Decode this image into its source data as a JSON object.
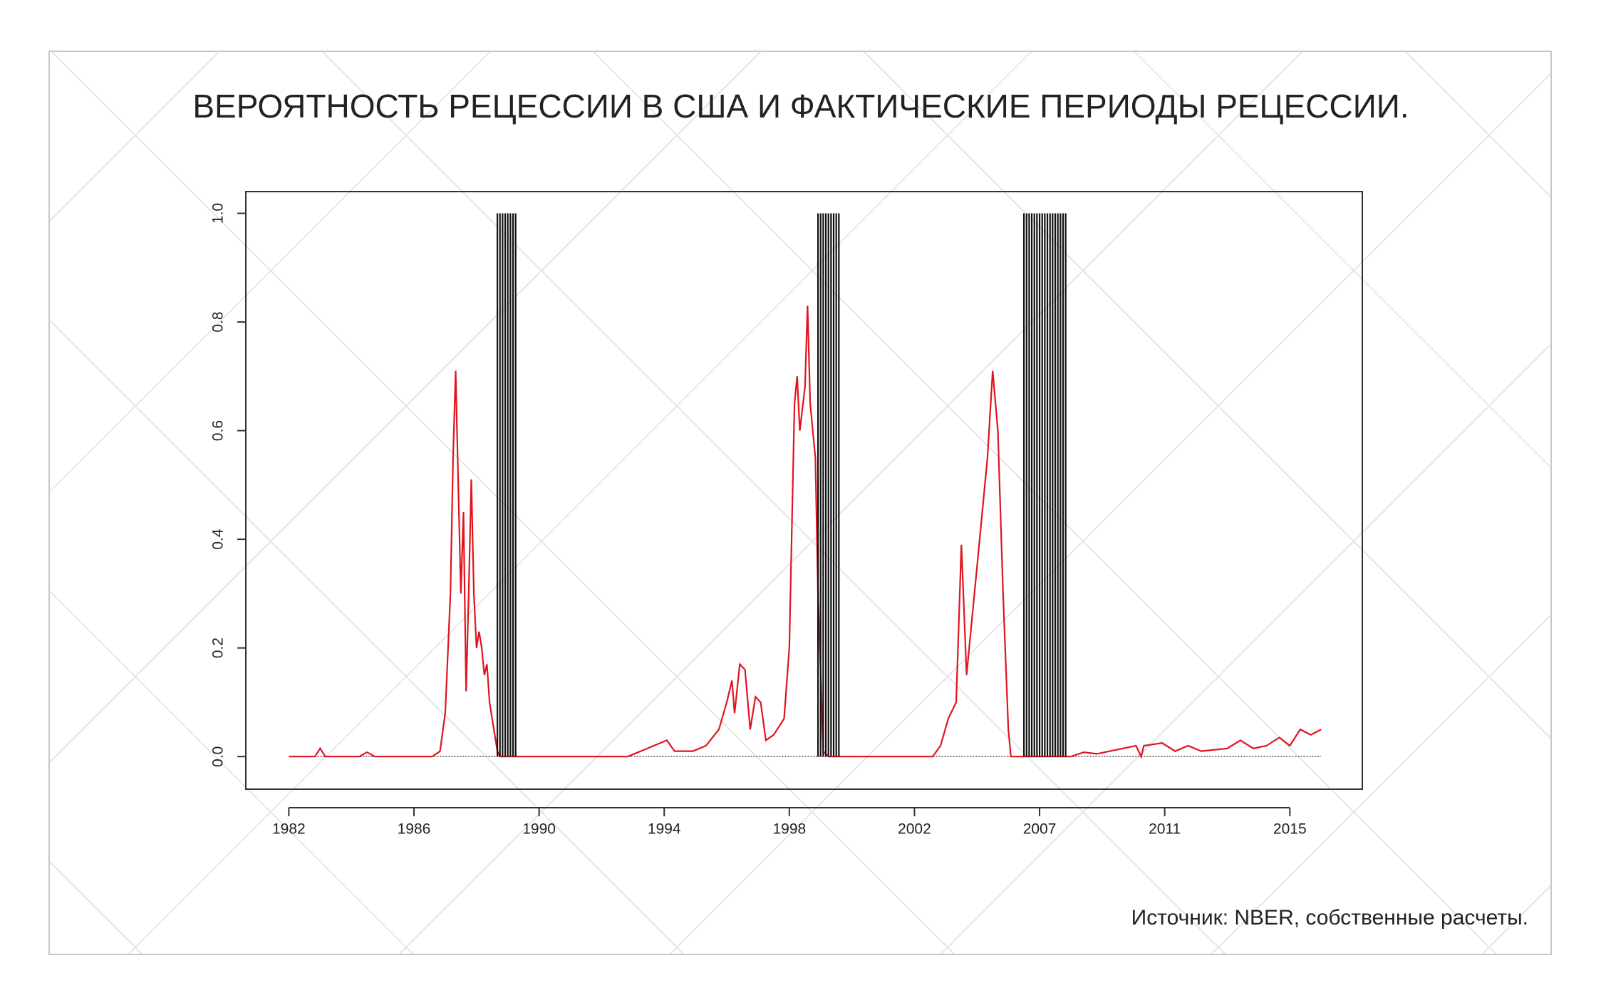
{
  "chart_data": {
    "type": "line",
    "title": "ВЕРОЯТНОСТЬ РЕЦЕССИИ В США И ФАКТИЧЕСКИЕ ПЕРИОДЫ РЕЦЕССИИ.",
    "source": "Источник: NBER, собственные расчеты.",
    "xlim": [
      -16.5,
      411.8
    ],
    "xticks": [
      {
        "value": 0,
        "label": "1982"
      },
      {
        "value": 48,
        "label": "1986"
      },
      {
        "value": 96,
        "label": "1990"
      },
      {
        "value": 144,
        "label": "1994"
      },
      {
        "value": 192,
        "label": "1998"
      },
      {
        "value": 240,
        "label": "2002"
      },
      {
        "value": 288,
        "label": "2007"
      },
      {
        "value": 336,
        "label": "2011"
      },
      {
        "value": 384,
        "label": "2015"
      }
    ],
    "ylim": [
      -0.06,
      1.04
    ],
    "yticks": [
      {
        "value": 0,
        "label": "0.0"
      },
      {
        "value": 0.2,
        "label": "0.2"
      },
      {
        "value": 0.4,
        "label": "0.4"
      },
      {
        "value": 0.6,
        "label": "0.6"
      },
      {
        "value": 0.8,
        "label": "0.8"
      },
      {
        "value": 1,
        "label": "1.0"
      }
    ],
    "series": [
      {
        "color": "#e0141e",
        "x": [
          0,
          10,
          12,
          14,
          27,
          30,
          33,
          55,
          58,
          60,
          62,
          63,
          64,
          65,
          66,
          67,
          68,
          69,
          70,
          71,
          72,
          73,
          74,
          75,
          76,
          77,
          78,
          79,
          80,
          81,
          130,
          135,
          140,
          145,
          148,
          155,
          160,
          165,
          168,
          170,
          171,
          173,
          175,
          177,
          179,
          181,
          183,
          186,
          190,
          192,
          194,
          195,
          196,
          198,
          199,
          200,
          202,
          203,
          205,
          207,
          247,
          250,
          253,
          256,
          258,
          260,
          262,
          264,
          266,
          268,
          270,
          272,
          274,
          276,
          277,
          300,
          305,
          310,
          315,
          325,
          327,
          328,
          335,
          340,
          345,
          350,
          360,
          365,
          370,
          375,
          380,
          384,
          388,
          392,
          396
        ],
        "values": [
          0,
          0,
          0.015,
          0,
          0,
          0.008,
          0,
          0,
          0.01,
          0.08,
          0.3,
          0.55,
          0.71,
          0.5,
          0.3,
          0.45,
          0.12,
          0.3,
          0.51,
          0.3,
          0.2,
          0.23,
          0.2,
          0.15,
          0.17,
          0.1,
          0.07,
          0.04,
          0.01,
          0,
          0,
          0.01,
          0.02,
          0.03,
          0.01,
          0.01,
          0.02,
          0.05,
          0.1,
          0.14,
          0.08,
          0.17,
          0.16,
          0.05,
          0.11,
          0.1,
          0.03,
          0.04,
          0.07,
          0.2,
          0.65,
          0.7,
          0.6,
          0.68,
          0.83,
          0.65,
          0.55,
          0.3,
          0.01,
          0,
          0,
          0.02,
          0.07,
          0.1,
          0.39,
          0.15,
          0.25,
          0.35,
          0.45,
          0.55,
          0.71,
          0.6,
          0.3,
          0.05,
          0,
          0,
          0.008,
          0.005,
          0.01,
          0.02,
          0,
          0.02,
          0.025,
          0.01,
          0.02,
          0.01,
          0.015,
          0.03,
          0.015,
          0.02,
          0.035,
          0.02,
          0.05,
          0.04,
          0.05
        ]
      },
      {
        "type": "spikes",
        "color": "#111111",
        "x": [
          80,
          81,
          82,
          83,
          84,
          85,
          86,
          87,
          203,
          204,
          205,
          206,
          207,
          208,
          209,
          210,
          211,
          282,
          283,
          284,
          285,
          286,
          287,
          288,
          289,
          290,
          291,
          292,
          293,
          294,
          295,
          296,
          297,
          298
        ],
        "values": [
          1,
          1,
          1,
          1,
          1,
          1,
          1,
          1,
          1,
          1,
          1,
          1,
          1,
          1,
          1,
          1,
          1,
          1,
          1,
          1,
          1,
          1,
          1,
          1,
          1,
          1,
          1,
          1,
          1,
          1,
          1,
          1,
          1,
          1
        ]
      }
    ]
  }
}
